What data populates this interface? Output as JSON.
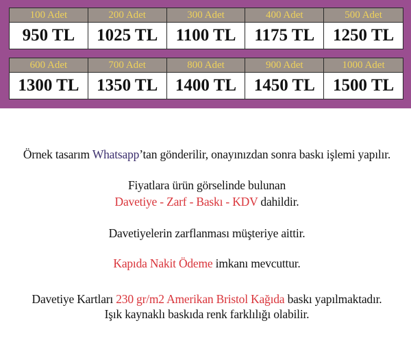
{
  "prices": [
    [
      {
        "qty": "100 Adet",
        "price": "950 TL"
      },
      {
        "qty": "200 Adet",
        "price": "1025 TL"
      },
      {
        "qty": "300 Adet",
        "price": "1100 TL"
      },
      {
        "qty": "400 Adet",
        "price": "1175 TL"
      },
      {
        "qty": "500 Adet",
        "price": "1250 TL"
      }
    ],
    [
      {
        "qty": "600 Adet",
        "price": "1300 TL"
      },
      {
        "qty": "700 Adet",
        "price": "1350 TL"
      },
      {
        "qty": "800 Adet",
        "price": "1400 TL"
      },
      {
        "qty": "900 Adet",
        "price": "1450 TL"
      },
      {
        "qty": "1000 Adet",
        "price": "1500 TL"
      }
    ]
  ],
  "info": {
    "l1a": "Örnek tasarım ",
    "l1b": "Whatsapp",
    "l1c": "’tan gönderilir, onayınızdan sonra baskı işlemi yapılır.",
    "l2": "Fiyatlara ürün görselinde bulunan",
    "l3a": "Davetiye - Zarf - Baskı - KDV",
    "l3b": " dahildir.",
    "l4": "Davetiyelerin zarflanması müşteriye aittir.",
    "l5a": "Kapıda Nakit Ödeme",
    "l5b": " imkanı mevcuttur.",
    "l6a": "Davetiye Kartları ",
    "l6b": "230 gr/m2 Amerikan Bristol Kağıda",
    "l6c": " baskı yapılmaktadır.",
    "l7": "Işık kaynaklı baskıda renk farklılığı olabilir."
  },
  "colors": {
    "panel": "#9a4e90",
    "header": "#9b918a",
    "qty_text": "#f0d35a",
    "highlight": "#d9343a",
    "whatsapp": "#3c2f6e"
  }
}
